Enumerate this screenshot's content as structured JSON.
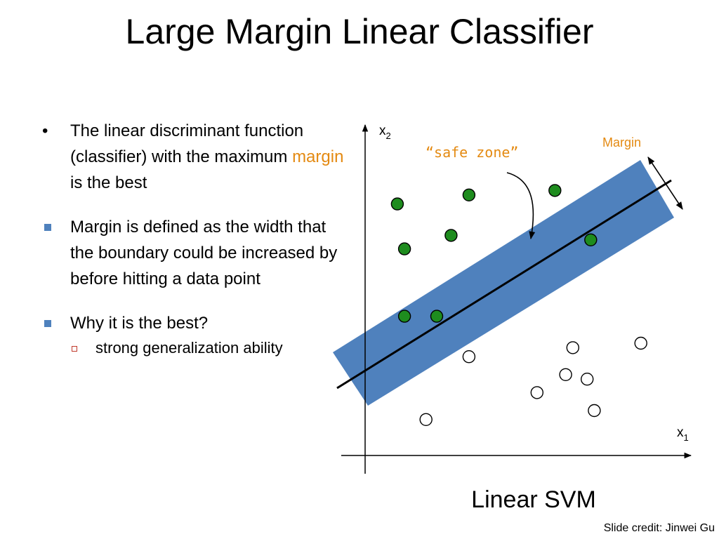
{
  "slide": {
    "title": "Large Margin Linear Classifier",
    "caption": "Linear SVM",
    "credit": "Slide credit: Jinwei Gu"
  },
  "bullets": {
    "b1": {
      "before": "The linear discriminant function (classifier) with the maximum ",
      "highlight": "margin",
      "after": " is the best"
    },
    "b2": {
      "text": "Margin is defined as the width that the boundary could be increased by before hitting a data point"
    },
    "b3": {
      "text": "Why it is the best?",
      "sub": "strong generalization ability"
    }
  },
  "diagram": {
    "x_axis_label": "x",
    "x_axis_subscript": "1",
    "y_axis_label": "x",
    "y_axis_subscript": "2",
    "margin_label": "Margin",
    "safe_zone_label": "“safe zone”",
    "colors": {
      "band": "#4f81bd",
      "positive": "#1e8c1e",
      "highlight_text": "#e48a12"
    },
    "positive_points": [
      {
        "x": 0.9,
        "y": 5.6
      },
      {
        "x": 2.9,
        "y": 5.8
      },
      {
        "x": 1.1,
        "y": 4.6
      },
      {
        "x": 2.4,
        "y": 4.9
      },
      {
        "x": 5.3,
        "y": 5.9
      },
      {
        "x": 6.3,
        "y": 4.8
      },
      {
        "x": 1.1,
        "y": 3.1
      },
      {
        "x": 2.0,
        "y": 3.1
      }
    ],
    "negative_points": [
      {
        "x": 7.7,
        "y": 2.5
      },
      {
        "x": 5.8,
        "y": 2.4
      },
      {
        "x": 2.9,
        "y": 2.2
      },
      {
        "x": 5.6,
        "y": 1.8
      },
      {
        "x": 6.2,
        "y": 1.7
      },
      {
        "x": 4.8,
        "y": 1.4
      },
      {
        "x": 6.4,
        "y": 1.0
      },
      {
        "x": 1.7,
        "y": 0.8
      }
    ]
  }
}
